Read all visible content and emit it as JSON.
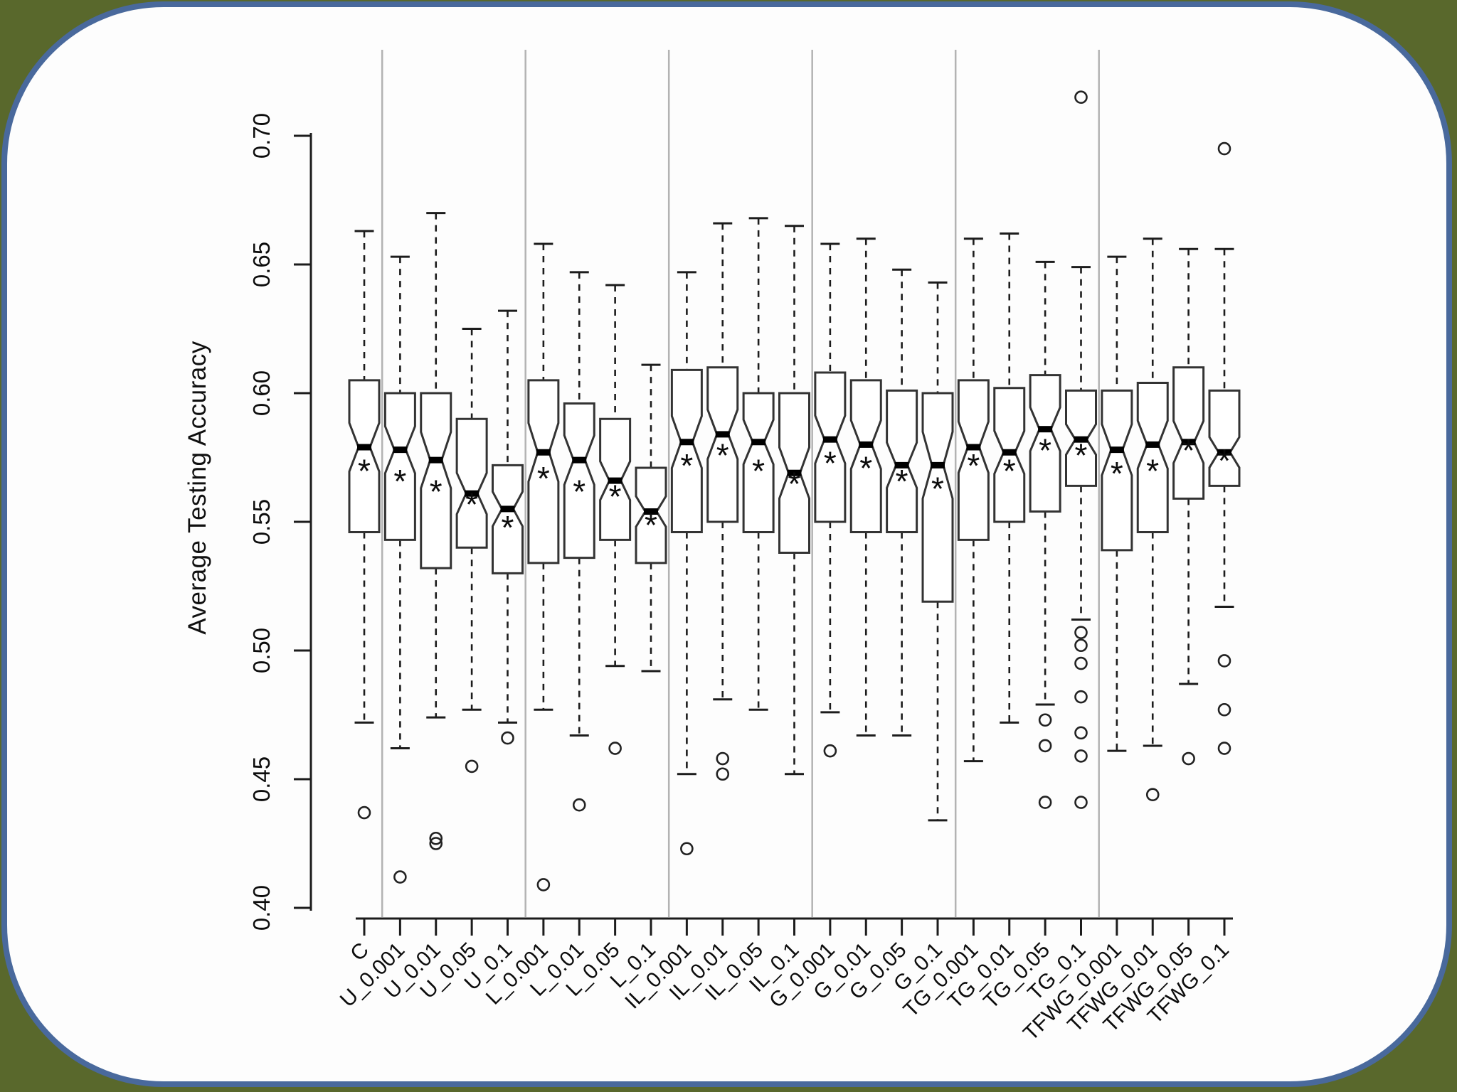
{
  "frame": {
    "background_color": "#59682c",
    "panel_border_color": "#49699c",
    "panel_fill_color": "#fdfdfd"
  },
  "chart_data": {
    "type": "boxplot",
    "title": "",
    "xlabel": "",
    "ylabel": "Average Testing Accuracy",
    "ylim": [
      0.4,
      0.7
    ],
    "yticks": [
      0.4,
      0.45,
      0.5,
      0.55,
      0.6,
      0.65,
      0.7
    ],
    "ytick_labels": [
      "0.40",
      "0.45",
      "0.50",
      "0.55",
      "0.60",
      "0.65",
      "0.70"
    ],
    "grid": "group-separator-lines-only",
    "legend": "none",
    "notched": true,
    "separator_color": "#b3b3b3",
    "box_color": "#222222",
    "group_separators_after_index": [
      0,
      4,
      8,
      12,
      16,
      20
    ],
    "categories": [
      "C",
      "U_0.001",
      "U_0.01",
      "U_0.05",
      "U_0.1",
      "L_0.001",
      "L_0.01",
      "L_0.05",
      "L_0.1",
      "IL_0.001",
      "IL_0.01",
      "IL_0.05",
      "IL_0.1",
      "G_0.001",
      "G_0.01",
      "G_0.05",
      "G_0.1",
      "TG_0.001",
      "TG_0.01",
      "TG_0.05",
      "TG_0.1",
      "TFWG_0.001",
      "TFWG_0.01",
      "TFWG_0.05",
      "TFWG_0.1"
    ],
    "boxes": [
      {
        "label": "C",
        "whisker_low": 0.472,
        "q1": 0.546,
        "median": 0.579,
        "q3": 0.605,
        "whisker_high": 0.663,
        "mean": 0.572,
        "outliers": [
          0.437
        ]
      },
      {
        "label": "U_0.001",
        "whisker_low": 0.462,
        "q1": 0.543,
        "median": 0.578,
        "q3": 0.6,
        "whisker_high": 0.653,
        "mean": 0.568,
        "outliers": [
          0.412
        ]
      },
      {
        "label": "U_0.01",
        "whisker_low": 0.474,
        "q1": 0.532,
        "median": 0.574,
        "q3": 0.6,
        "whisker_high": 0.67,
        "mean": 0.564,
        "outliers": [
          0.427,
          0.425
        ]
      },
      {
        "label": "U_0.05",
        "whisker_low": 0.477,
        "q1": 0.54,
        "median": 0.561,
        "q3": 0.59,
        "whisker_high": 0.625,
        "mean": 0.559,
        "outliers": [
          0.455
        ]
      },
      {
        "label": "U_0.1",
        "whisker_low": 0.472,
        "q1": 0.53,
        "median": 0.555,
        "q3": 0.572,
        "whisker_high": 0.632,
        "mean": 0.55,
        "outliers": [
          0.466
        ]
      },
      {
        "label": "L_0.001",
        "whisker_low": 0.477,
        "q1": 0.534,
        "median": 0.577,
        "q3": 0.605,
        "whisker_high": 0.658,
        "mean": 0.569,
        "outliers": [
          0.409
        ]
      },
      {
        "label": "L_0.01",
        "whisker_low": 0.467,
        "q1": 0.536,
        "median": 0.574,
        "q3": 0.596,
        "whisker_high": 0.647,
        "mean": 0.564,
        "outliers": [
          0.44
        ]
      },
      {
        "label": "L_0.05",
        "whisker_low": 0.494,
        "q1": 0.543,
        "median": 0.566,
        "q3": 0.59,
        "whisker_high": 0.642,
        "mean": 0.562,
        "outliers": [
          0.462
        ]
      },
      {
        "label": "L_0.1",
        "whisker_low": 0.492,
        "q1": 0.534,
        "median": 0.554,
        "q3": 0.571,
        "whisker_high": 0.611,
        "mean": 0.551,
        "outliers": []
      },
      {
        "label": "IL_0.001",
        "whisker_low": 0.452,
        "q1": 0.546,
        "median": 0.581,
        "q3": 0.609,
        "whisker_high": 0.647,
        "mean": 0.574,
        "outliers": [
          0.423
        ]
      },
      {
        "label": "IL_0.01",
        "whisker_low": 0.481,
        "q1": 0.55,
        "median": 0.584,
        "q3": 0.61,
        "whisker_high": 0.666,
        "mean": 0.578,
        "outliers": [
          0.458,
          0.452
        ]
      },
      {
        "label": "IL_0.05",
        "whisker_low": 0.477,
        "q1": 0.546,
        "median": 0.581,
        "q3": 0.6,
        "whisker_high": 0.668,
        "mean": 0.572,
        "outliers": []
      },
      {
        "label": "IL_0.1",
        "whisker_low": 0.452,
        "q1": 0.538,
        "median": 0.569,
        "q3": 0.6,
        "whisker_high": 0.665,
        "mean": 0.567,
        "outliers": []
      },
      {
        "label": "G_0.001",
        "whisker_low": 0.476,
        "q1": 0.55,
        "median": 0.582,
        "q3": 0.608,
        "whisker_high": 0.658,
        "mean": 0.575,
        "outliers": [
          0.461
        ]
      },
      {
        "label": "G_0.01",
        "whisker_low": 0.467,
        "q1": 0.546,
        "median": 0.58,
        "q3": 0.605,
        "whisker_high": 0.66,
        "mean": 0.573,
        "outliers": []
      },
      {
        "label": "G_0.05",
        "whisker_low": 0.467,
        "q1": 0.546,
        "median": 0.572,
        "q3": 0.601,
        "whisker_high": 0.648,
        "mean": 0.568,
        "outliers": []
      },
      {
        "label": "G_0.1",
        "whisker_low": 0.434,
        "q1": 0.519,
        "median": 0.572,
        "q3": 0.6,
        "whisker_high": 0.643,
        "mean": 0.565,
        "outliers": []
      },
      {
        "label": "TG_0.001",
        "whisker_low": 0.457,
        "q1": 0.543,
        "median": 0.579,
        "q3": 0.605,
        "whisker_high": 0.66,
        "mean": 0.574,
        "outliers": []
      },
      {
        "label": "TG_0.01",
        "whisker_low": 0.472,
        "q1": 0.55,
        "median": 0.577,
        "q3": 0.602,
        "whisker_high": 0.662,
        "mean": 0.572,
        "outliers": []
      },
      {
        "label": "TG_0.05",
        "whisker_low": 0.479,
        "q1": 0.554,
        "median": 0.586,
        "q3": 0.607,
        "whisker_high": 0.651,
        "mean": 0.58,
        "outliers": [
          0.473,
          0.463,
          0.441
        ]
      },
      {
        "label": "TG_0.1",
        "whisker_low": 0.512,
        "q1": 0.564,
        "median": 0.582,
        "q3": 0.601,
        "whisker_high": 0.649,
        "mean": 0.578,
        "outliers": [
          0.715,
          0.507,
          0.502,
          0.495,
          0.482,
          0.468,
          0.459,
          0.441
        ]
      },
      {
        "label": "TFWG_0.001",
        "whisker_low": 0.461,
        "q1": 0.539,
        "median": 0.578,
        "q3": 0.601,
        "whisker_high": 0.653,
        "mean": 0.571,
        "outliers": []
      },
      {
        "label": "TFWG_0.01",
        "whisker_low": 0.463,
        "q1": 0.546,
        "median": 0.58,
        "q3": 0.604,
        "whisker_high": 0.66,
        "mean": 0.572,
        "outliers": [
          0.444
        ]
      },
      {
        "label": "TFWG_0.05",
        "whisker_low": 0.487,
        "q1": 0.559,
        "median": 0.581,
        "q3": 0.61,
        "whisker_high": 0.656,
        "mean": 0.58,
        "outliers": [
          0.458
        ]
      },
      {
        "label": "TFWG_0.1",
        "whisker_low": 0.517,
        "q1": 0.564,
        "median": 0.577,
        "q3": 0.601,
        "whisker_high": 0.656,
        "mean": 0.576,
        "outliers": [
          0.695,
          0.496,
          0.477,
          0.462
        ]
      }
    ]
  }
}
